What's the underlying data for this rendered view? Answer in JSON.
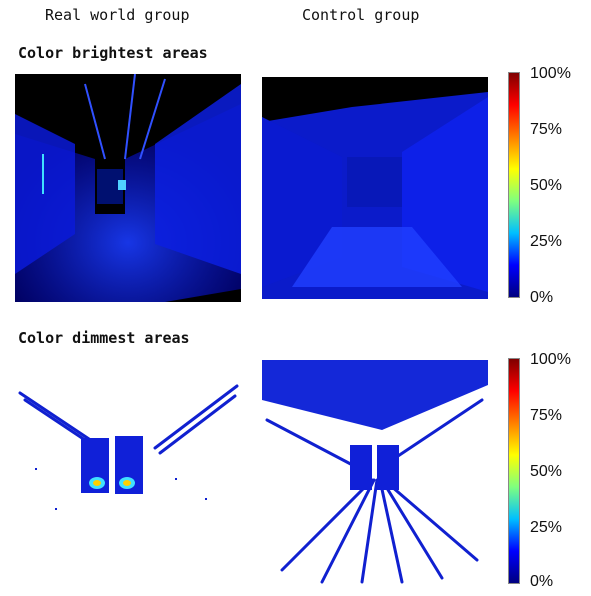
{
  "headers": {
    "left": "Real world group",
    "right": "Control group"
  },
  "rows": [
    {
      "title": "Color brightest areas"
    },
    {
      "title": "Color dimmest areas"
    }
  ],
  "colorbar": {
    "colors": [
      "#00007f",
      "#0000ff",
      "#00bfff",
      "#7fff7f",
      "#ffff00",
      "#ff7f00",
      "#ff0000",
      "#7f0000"
    ],
    "ticks": [
      "100%",
      "75%",
      "50%",
      "25%",
      "0%"
    ]
  }
}
